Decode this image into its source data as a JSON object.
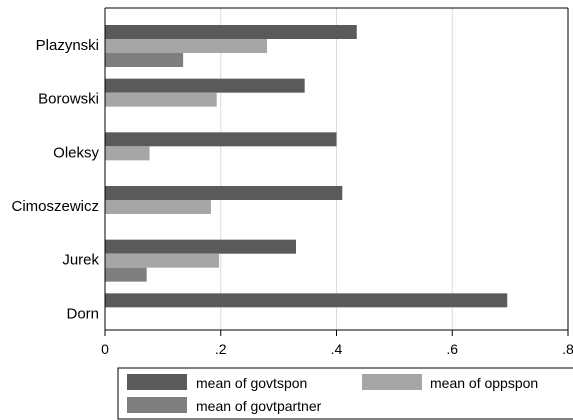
{
  "chart_data": {
    "type": "bar",
    "orientation": "horizontal",
    "categories": [
      "Plazynski",
      "Borowski",
      "Oleksy",
      "Cimoszewicz",
      "Jurek",
      "Dorn"
    ],
    "series": [
      {
        "name": "mean of govtspon",
        "color": "#5a5a5a",
        "values": [
          0.435,
          0.345,
          0.4,
          0.41,
          0.33,
          0.695
        ]
      },
      {
        "name": "mean of oppspon",
        "color": "#a6a6a6",
        "values": [
          0.28,
          0.193,
          0.077,
          0.183,
          0.197,
          null
        ]
      },
      {
        "name": "mean of govtpartner",
        "color": "#7f7f7f",
        "values": [
          0.135,
          null,
          null,
          null,
          0.072,
          null
        ]
      }
    ],
    "xlim": [
      0,
      0.8
    ],
    "xticks": [
      0,
      0.2,
      0.4,
      0.6,
      0.8
    ],
    "xtick_labels": [
      "0",
      ".2",
      ".4",
      ".6",
      ".8"
    ],
    "grid": true,
    "legend_position": "bottom"
  }
}
